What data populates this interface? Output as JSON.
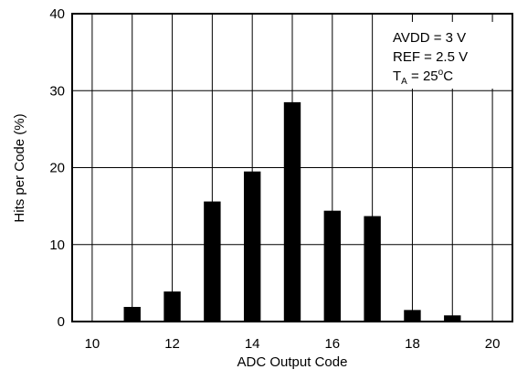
{
  "chart_data": {
    "type": "bar",
    "title": "",
    "xlabel": "ADC Output Code",
    "ylabel": "Hits per Code (%)",
    "x": [
      11,
      12,
      13,
      14,
      15,
      16,
      17,
      18,
      19
    ],
    "values": [
      1.9,
      3.9,
      15.6,
      19.5,
      28.5,
      14.4,
      13.7,
      1.5,
      0.8
    ],
    "xlim": [
      9.5,
      20.5
    ],
    "ylim": [
      0,
      40
    ],
    "xticks": [
      "10",
      "12",
      "14",
      "16",
      "18",
      "20"
    ],
    "yticks": [
      "0",
      "10",
      "20",
      "30",
      "40"
    ],
    "grid": true,
    "bar_color": "#000000",
    "annotation": {
      "line1": "AVDD = 3 V",
      "line2": "REF = 2.5 V",
      "line3_main": "T",
      "line3_sub": "A",
      "line3_eq": " = 25",
      "line3_sup": "o",
      "line3_unit": "C"
    }
  }
}
